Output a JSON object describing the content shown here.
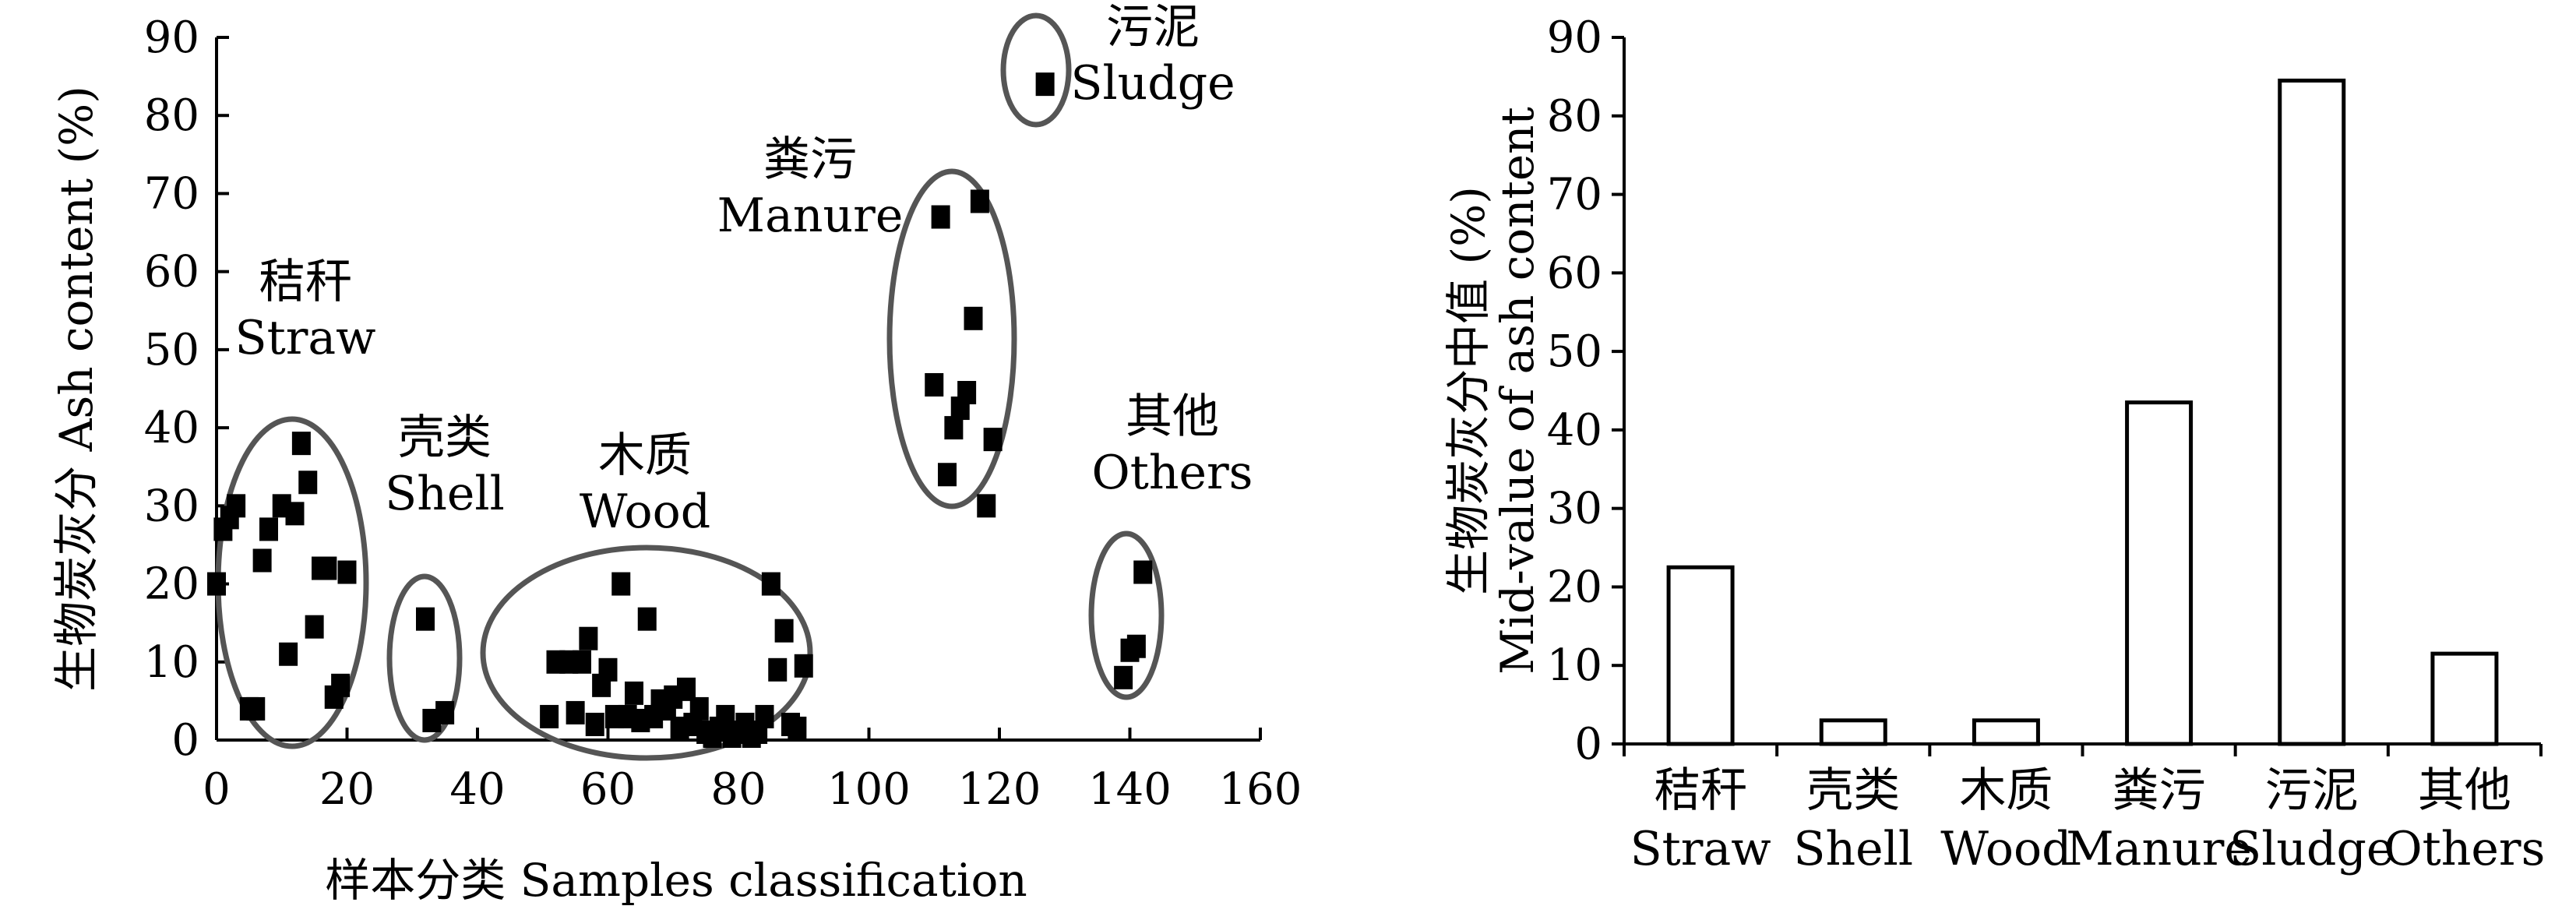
{
  "chart_data": [
    {
      "type": "scatter",
      "xlabel": "样本分类 Samples classification",
      "ylabel": "生物炭灰分 Ash content (%)",
      "xlim": [
        0,
        160
      ],
      "ylim": [
        0,
        90
      ],
      "xticks": [
        "0",
        "20",
        "40",
        "60",
        "80",
        "100",
        "120",
        "140",
        "160"
      ],
      "yticks": [
        "0",
        "10",
        "20",
        "30",
        "40",
        "50",
        "60",
        "70",
        "80",
        "90"
      ],
      "grid": false,
      "groups": [
        {
          "name_cn": "秸秆",
          "name_en": "Straw",
          "points": [
            [
              0,
              20
            ],
            [
              1,
              27
            ],
            [
              2,
              28.5
            ],
            [
              3,
              30
            ],
            [
              5,
              4
            ],
            [
              6,
              4
            ],
            [
              7,
              23
            ],
            [
              8,
              27
            ],
            [
              10,
              30
            ],
            [
              11,
              11
            ],
            [
              12,
              29
            ],
            [
              13,
              38
            ],
            [
              14,
              33
            ],
            [
              15,
              14.5
            ],
            [
              16,
              22
            ],
            [
              17,
              22
            ],
            [
              18,
              5.5
            ],
            [
              19,
              7
            ],
            [
              20,
              21.5
            ]
          ]
        },
        {
          "name_cn": "壳类",
          "name_en": "Shell",
          "points": [
            [
              32,
              15.5
            ],
            [
              33,
              2.5
            ],
            [
              35,
              3.5
            ]
          ]
        },
        {
          "name_cn": "木质",
          "name_en": "Wood",
          "points": [
            [
              51,
              3
            ],
            [
              52,
              10
            ],
            [
              54,
              10
            ],
            [
              55,
              3.5
            ],
            [
              56,
              10
            ],
            [
              57,
              13
            ],
            [
              58,
              2
            ],
            [
              59,
              7
            ],
            [
              60,
              9
            ],
            [
              61,
              3
            ],
            [
              62,
              20
            ],
            [
              63,
              3
            ],
            [
              64,
              6
            ],
            [
              65,
              2.5
            ],
            [
              66,
              15.5
            ],
            [
              67,
              3
            ],
            [
              68,
              5
            ],
            [
              69,
              4
            ],
            [
              70,
              5.5
            ],
            [
              71,
              1.5
            ],
            [
              72,
              6.5
            ],
            [
              73,
              2
            ],
            [
              74,
              4
            ],
            [
              75,
              1
            ],
            [
              76,
              0.5
            ],
            [
              77,
              1.5
            ],
            [
              78,
              3
            ],
            [
              79,
              0.5
            ],
            [
              80,
              1
            ],
            [
              81,
              2
            ],
            [
              82,
              0.5
            ],
            [
              83,
              1
            ],
            [
              84,
              3
            ],
            [
              85,
              20
            ],
            [
              86,
              9
            ],
            [
              87,
              14
            ],
            [
              88,
              2
            ],
            [
              89,
              1.5
            ],
            [
              90,
              9.5
            ]
          ]
        },
        {
          "name_cn": "粪污",
          "name_en": "Manure",
          "points": [
            [
              110,
              45.5
            ],
            [
              111,
              67
            ],
            [
              112,
              34
            ],
            [
              113,
              40
            ],
            [
              114,
              42.5
            ],
            [
              115,
              44.5
            ],
            [
              116,
              54
            ],
            [
              117,
              69
            ],
            [
              118,
              30
            ],
            [
              119,
              38.5
            ]
          ]
        },
        {
          "name_cn": "污泥",
          "name_en": "Sludge",
          "points": [
            [
              127,
              84
            ]
          ]
        },
        {
          "name_cn": "其他",
          "name_en": "Others",
          "points": [
            [
              139,
              8
            ],
            [
              140,
              11.5
            ],
            [
              141,
              12
            ],
            [
              142,
              21.5
            ]
          ]
        }
      ]
    },
    {
      "type": "bar",
      "ylabel_cn": "生物炭灰分中值 (%)",
      "ylabel_en": "Mid-value of ash content",
      "ylim": [
        0,
        90
      ],
      "yticks": [
        "0",
        "10",
        "20",
        "30",
        "40",
        "50",
        "60",
        "70",
        "80",
        "90"
      ],
      "grid": false,
      "categories": [
        {
          "cn": "秸秆",
          "en": "Straw"
        },
        {
          "cn": "壳类",
          "en": "Shell"
        },
        {
          "cn": "木质",
          "en": "Wood"
        },
        {
          "cn": "粪污",
          "en": "Manure"
        },
        {
          "cn": "污泥",
          "en": "Sludge"
        },
        {
          "cn": "其他",
          "en": "Others"
        }
      ],
      "values": [
        22.5,
        3,
        3,
        43.5,
        84.5,
        11.5
      ]
    }
  ]
}
